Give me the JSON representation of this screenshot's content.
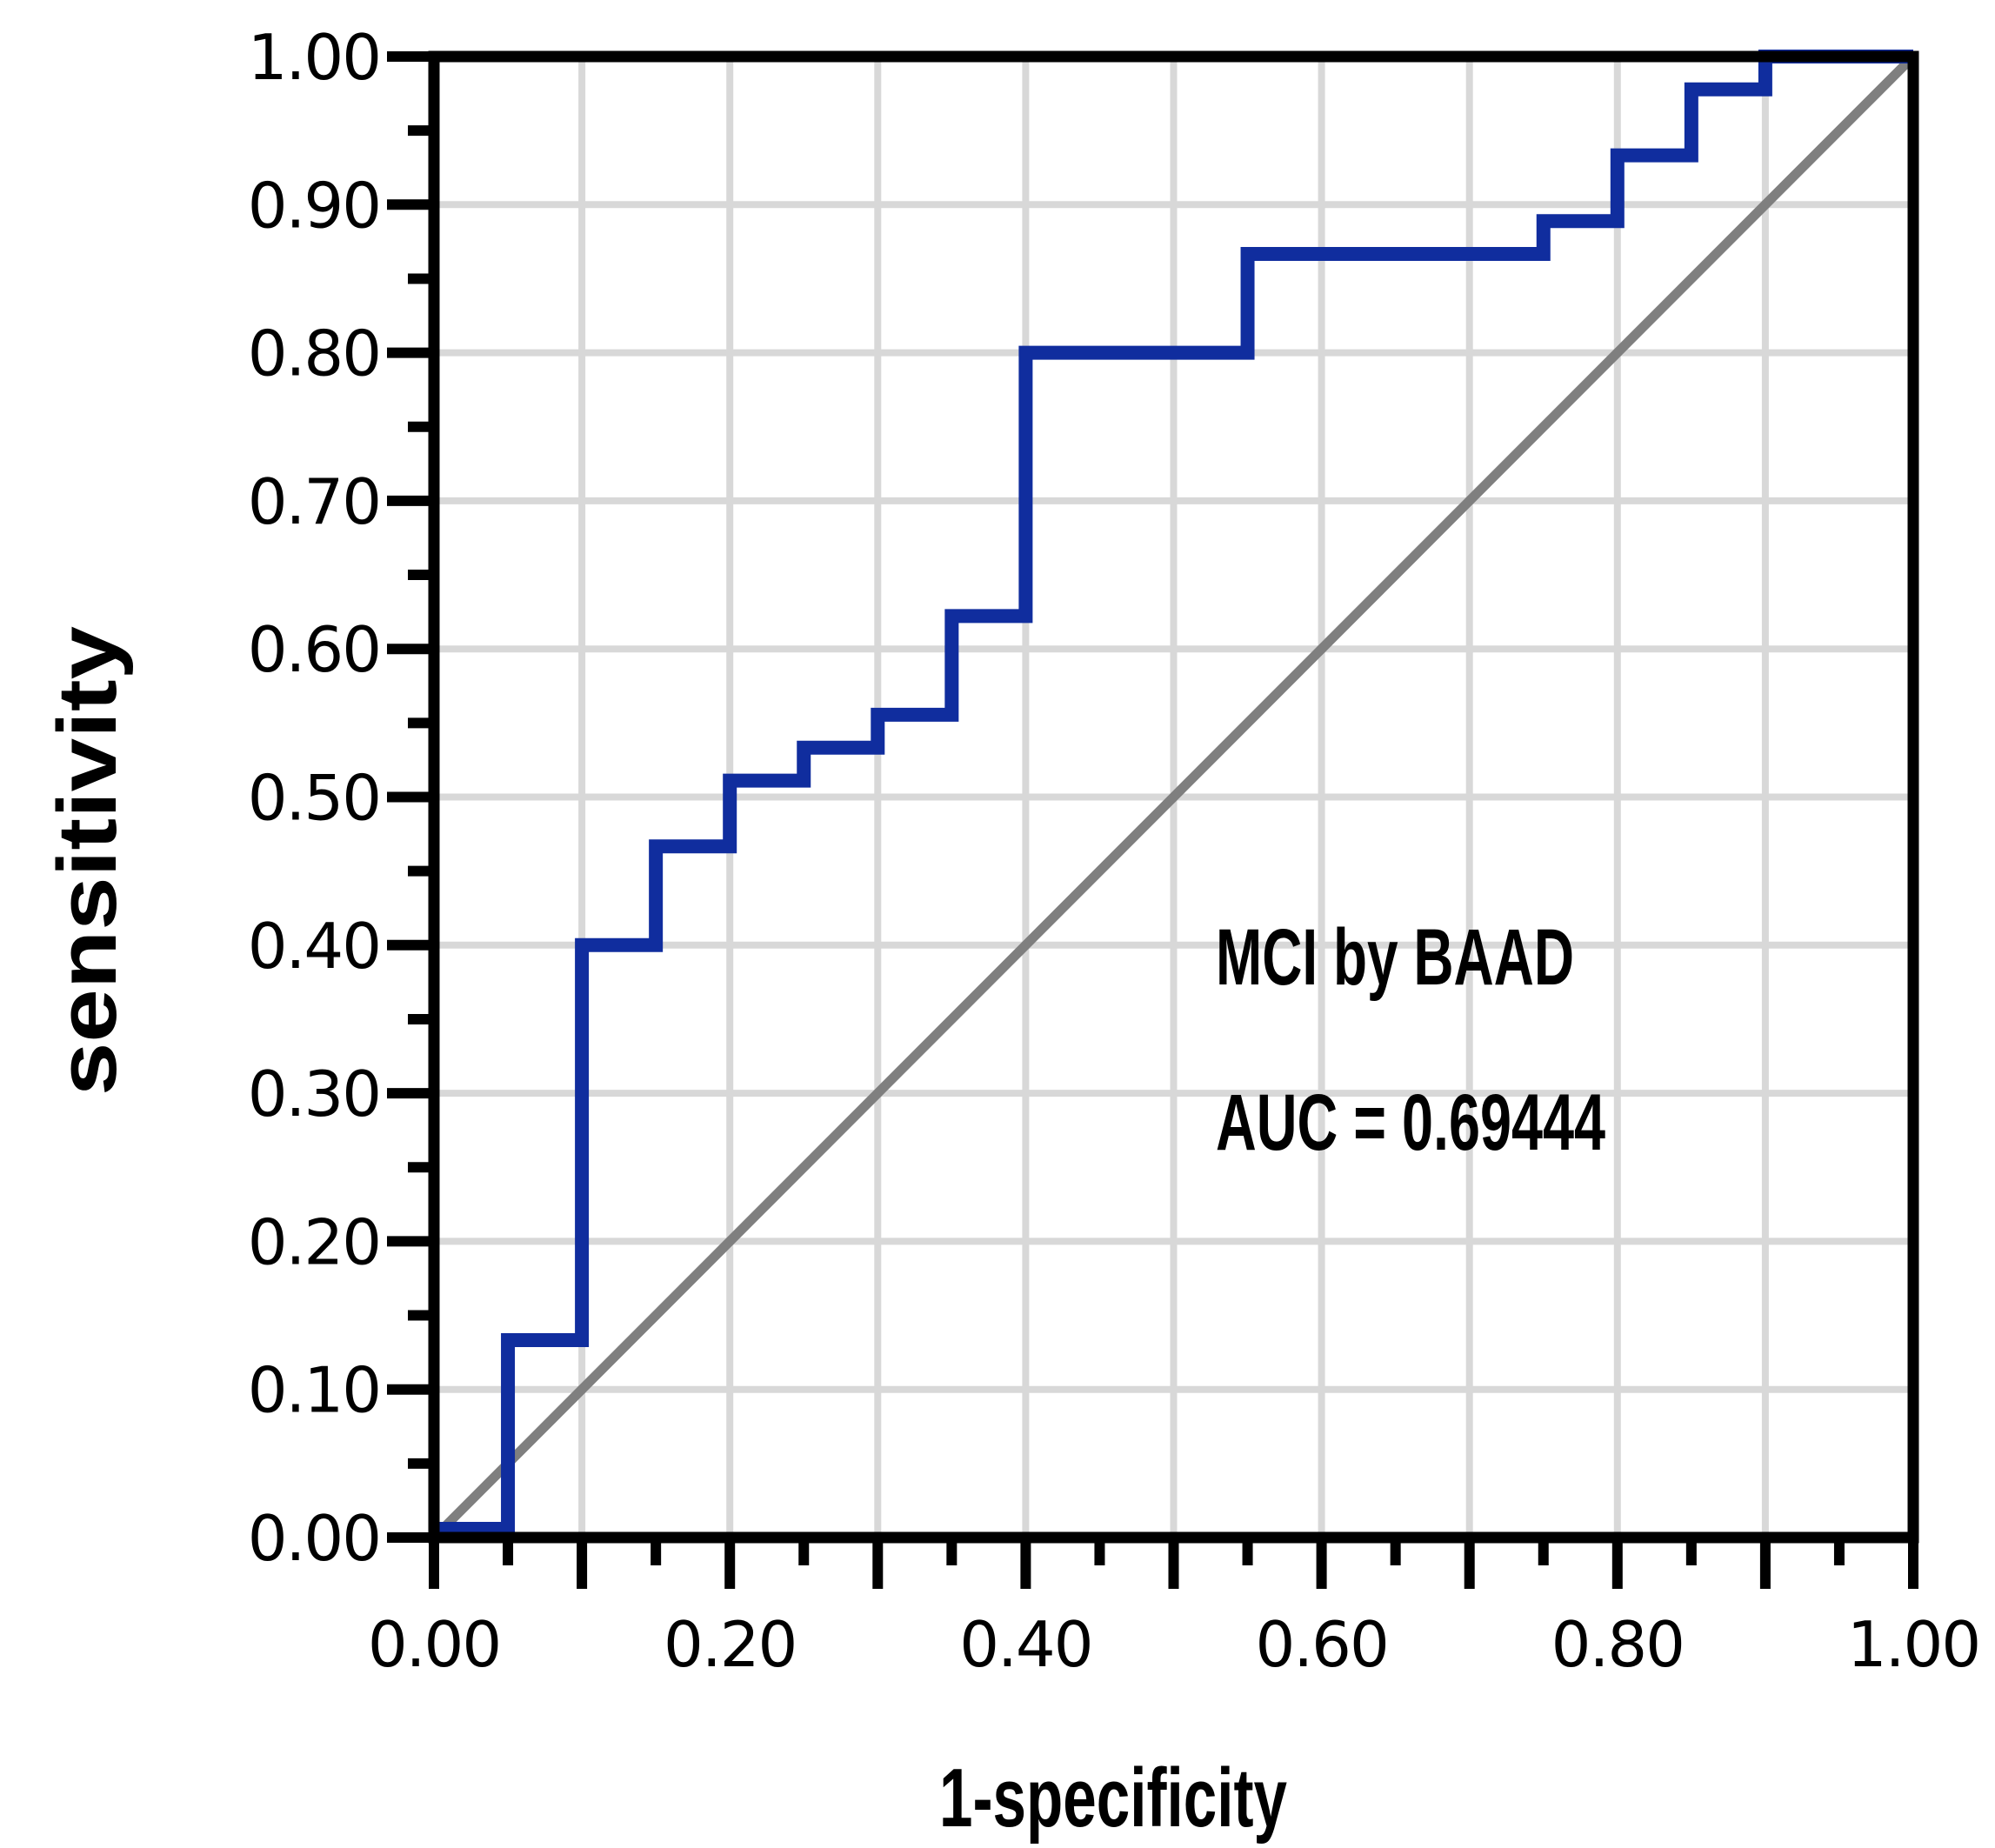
{
  "chart_data": {
    "type": "line",
    "subtype": "roc-step-curve",
    "title": "",
    "xlabel": "1-specificity",
    "ylabel": "sensitivity",
    "xlim": [
      0.0,
      1.0
    ],
    "ylim": [
      0.0,
      1.0
    ],
    "grid": true,
    "grid_step": 0.1,
    "minor_tick_step": 0.05,
    "legend_position": "none",
    "x_tick_labels": [
      {
        "value": 0.0,
        "label": "0.00"
      },
      {
        "value": 0.2,
        "label": "0.20"
      },
      {
        "value": 0.4,
        "label": "0.40"
      },
      {
        "value": 0.6,
        "label": "0.60"
      },
      {
        "value": 0.8,
        "label": "0.80"
      },
      {
        "value": 1.0,
        "label": "1.00"
      }
    ],
    "y_tick_labels": [
      {
        "value": 0.0,
        "label": "0.00"
      },
      {
        "value": 0.1,
        "label": "0.10"
      },
      {
        "value": 0.2,
        "label": "0.20"
      },
      {
        "value": 0.3,
        "label": "0.30"
      },
      {
        "value": 0.4,
        "label": "0.40"
      },
      {
        "value": 0.5,
        "label": "0.50"
      },
      {
        "value": 0.6,
        "label": "0.60"
      },
      {
        "value": 0.7,
        "label": "0.70"
      },
      {
        "value": 0.8,
        "label": "0.80"
      },
      {
        "value": 0.9,
        "label": "0.90"
      },
      {
        "value": 1.0,
        "label": "1.00"
      }
    ],
    "series": [
      {
        "name": "ROC curve",
        "color": "#102d9e",
        "stroke_width": 16,
        "points": [
          [
            0.0,
            0.0
          ],
          [
            0.05,
            0.0
          ],
          [
            0.05,
            0.1333
          ],
          [
            0.1,
            0.1333
          ],
          [
            0.1,
            0.4
          ],
          [
            0.15,
            0.4
          ],
          [
            0.15,
            0.4667
          ],
          [
            0.2,
            0.4667
          ],
          [
            0.2,
            0.5111
          ],
          [
            0.25,
            0.5111
          ],
          [
            0.25,
            0.5333
          ],
          [
            0.3,
            0.5333
          ],
          [
            0.3,
            0.5556
          ],
          [
            0.35,
            0.5556
          ],
          [
            0.35,
            0.6222
          ],
          [
            0.4,
            0.6222
          ],
          [
            0.4,
            0.8
          ],
          [
            0.55,
            0.8
          ],
          [
            0.55,
            0.8667
          ],
          [
            0.75,
            0.8667
          ],
          [
            0.75,
            0.8889
          ],
          [
            0.8,
            0.8889
          ],
          [
            0.8,
            0.9333
          ],
          [
            0.85,
            0.9333
          ],
          [
            0.85,
            0.9778
          ],
          [
            0.9,
            0.9778
          ],
          [
            0.9,
            1.0
          ],
          [
            1.0,
            1.0
          ]
        ]
      },
      {
        "name": "chance diagonal",
        "color": "#7f7f7f",
        "stroke_width": 11,
        "points": [
          [
            0.0,
            0.0
          ],
          [
            1.0,
            1.0
          ]
        ]
      }
    ],
    "annotation": {
      "line1": "MCI by BAAD",
      "line2": "AUC = 0.69444",
      "auc": 0.69444
    },
    "colors": {
      "curve": "#102d9e",
      "diagonal": "#7f7f7f",
      "gridline": "#d8d8d8",
      "axis": "#000000",
      "background": "#ffffff"
    }
  }
}
